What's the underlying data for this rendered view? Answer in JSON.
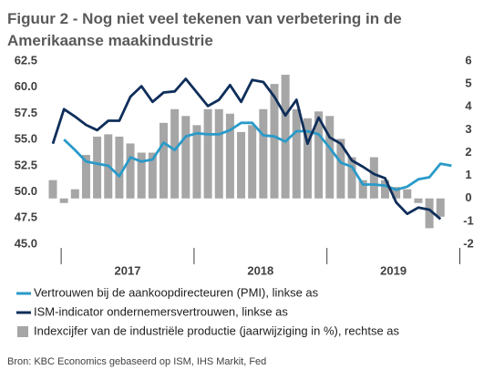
{
  "chart_data": {
    "type": "bar_line",
    "title": "Figuur 2 - Nog niet veel tekenen van verbetering in de",
    "subtitle": "Amerikaanse maakindustrie",
    "source": "Bron: KBC Economics gebaseerd op ISM, IHS Markit, Fed",
    "categories": [
      null,
      null,
      null,
      null,
      null,
      null,
      null,
      null,
      null,
      null,
      null,
      null,
      null,
      null,
      null,
      null,
      null,
      null,
      null,
      null,
      null,
      null,
      null,
      null,
      null,
      null,
      null,
      null,
      null,
      null,
      null,
      null,
      null,
      null,
      null,
      null,
      null
    ],
    "year_labels": [
      "2017",
      "2018",
      "2019"
    ],
    "series": [
      {
        "name": "Vertrouwen bij de aankoopdirecteuren (PMI), linkse as",
        "color": "#2a9ac8",
        "type": "line",
        "axis": "y",
        "values": [
          null,
          55.0,
          54.0,
          52.9,
          52.7,
          52.5,
          51.5,
          53.3,
          52.9,
          53.1,
          54.7,
          54.0,
          55.3,
          55.6,
          55.5,
          55.5,
          55.9,
          56.6,
          56.6,
          55.4,
          55.3,
          54.8,
          55.8,
          55.8,
          55.5,
          54.2,
          52.8,
          52.4,
          50.7,
          50.7,
          50.6,
          50.2,
          50.5,
          51.2,
          51.4,
          52.7,
          52.5
        ]
      },
      {
        "name": "ISM-indicator ondernemersvertrouwen, linkse as",
        "color": "#0f2e5a",
        "type": "line",
        "axis": "y",
        "values": [
          54.6,
          57.9,
          57.2,
          56.4,
          55.9,
          56.8,
          56.8,
          59.1,
          60.1,
          58.6,
          59.5,
          59.6,
          60.8,
          59.5,
          58.2,
          58.8,
          60.2,
          58.6,
          60.7,
          60.5,
          59.1,
          57.3,
          58.8,
          54.6,
          57.1,
          55.2,
          54.6,
          53.0,
          52.4,
          51.7,
          51.3,
          49.0,
          47.9,
          48.5,
          48.3,
          47.4,
          null
        ]
      },
      {
        "name": "Indexcijfer van de industriële productie (jaarwijziging in %), rechtse as",
        "color": "#a6a6a6",
        "type": "bar",
        "axis": "y2",
        "values": [
          0.8,
          -0.2,
          0.4,
          1.9,
          2.7,
          2.8,
          2.7,
          2.4,
          2.0,
          2.0,
          3.3,
          3.9,
          3.6,
          3.2,
          3.9,
          3.9,
          3.7,
          2.9,
          3.2,
          3.9,
          5.0,
          5.4,
          3.9,
          3.5,
          3.8,
          3.6,
          2.6,
          1.8,
          0.8,
          1.8,
          0.8,
          0.5,
          0.4,
          -0.2,
          -1.3,
          -0.8,
          null
        ]
      }
    ],
    "ylim": [
      45,
      62.5
    ],
    "yticks": [
      {
        "value": 45,
        "label": "45.0"
      },
      47.5,
      {
        "value": 50,
        "label": "50.0"
      },
      52.5,
      {
        "value": 55,
        "label": "55.0"
      },
      57.5,
      {
        "value": 60,
        "label": "60.0"
      },
      62.5
    ],
    "y2lim": [
      -2,
      6
    ],
    "y2ticks": [
      -2,
      -1,
      0,
      1,
      2,
      3,
      4,
      5,
      6
    ],
    "grid": false
  }
}
